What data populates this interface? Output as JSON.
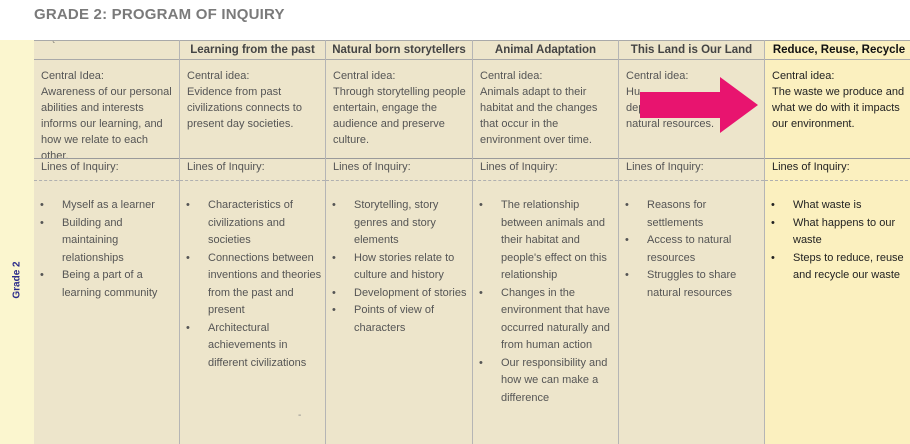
{
  "title": "GRADE 2: PROGRAM OF INQUIRY",
  "grade_label": "Grade 2",
  "first_header_mark": "`",
  "stray_mark": "-",
  "colors": {
    "beige": "#ede5cb",
    "yellow": "#fbf0bf",
    "arrow": "#e8146f",
    "grade_text": "#2a2a8a"
  },
  "columns": [
    {
      "header": "",
      "central_label": "Central Idea:",
      "central_text": "Awareness of our personal abilities and interests informs our learning, and how we relate to each other.",
      "loi_label": "Lines of Inquiry:",
      "items": [
        "Myself as a learner",
        "Building and maintaining relationships",
        "Being a part of a learning community"
      ]
    },
    {
      "header": "Learning from the past",
      "central_label": "Central idea:",
      "central_text": "Evidence from past civilizations connects to present day societies.",
      "loi_label": "Lines of Inquiry:",
      "items": [
        "Characteristics of civilizations and societies",
        "Connections between inventions and theories from the past and present",
        "Architectural achievements in different civilizations"
      ]
    },
    {
      "header": "Natural born storytellers",
      "central_label": "Central idea:",
      "central_text": "Through storytelling people entertain, engage the audience and preserve culture.",
      "loi_label": "Lines of Inquiry:",
      "items": [
        "Storytelling, story genres and story elements",
        "How stories relate to culture and history",
        "Development of stories",
        "Points of view of characters"
      ]
    },
    {
      "header": "Animal Adaptation",
      "central_label": "Central idea:",
      "central_text": "Animals adapt to their habitat and the changes that occur in the environment over time.",
      "loi_label": "Lines of Inquiry:",
      "items": [
        "The relationship between animals and their habitat and people's effect on this relationship",
        "Changes in the environment that have occurred naturally and from human action",
        "Our responsibility and how we can make a difference"
      ]
    },
    {
      "header": "This Land is Our Land",
      "central_label": "Central idea:",
      "central_text": "Hu...",
      "central_text2": "dep...",
      "central_text3": "natural resources.",
      "loi_label": "Lines of Inquiry:",
      "items": [
        "Reasons for settlements",
        "Access to natural resources",
        "Struggles to share natural resources"
      ]
    },
    {
      "header": "Reduce, Reuse, Recycle",
      "central_label": "Central idea:",
      "central_text": "The waste we produce and what we do with it impacts our environment.",
      "loi_label": "Lines of Inquiry:",
      "items": [
        "What waste is",
        "What happens to our waste",
        "Steps to reduce, reuse and recycle our waste"
      ]
    }
  ]
}
